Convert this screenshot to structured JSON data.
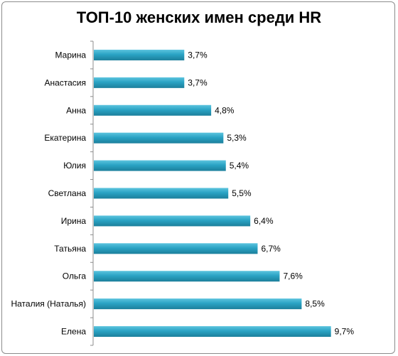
{
  "chart_data": {
    "type": "bar",
    "orientation": "horizontal",
    "title": "ТОП-10 женских имен среди HR",
    "categories": [
      "Марина",
      "Анастасия",
      "Анна",
      "Екатерина",
      "Юлия",
      "Светлана",
      "Ирина",
      "Татьяна",
      "Ольга",
      "Наталия (Наталья)",
      "Елена"
    ],
    "values": [
      3.7,
      3.7,
      4.8,
      5.3,
      5.4,
      5.5,
      6.4,
      6.7,
      7.6,
      8.5,
      9.7
    ],
    "data_labels": [
      "3,7%",
      "3,7%",
      "4,8%",
      "5,3%",
      "5,4%",
      "5,5%",
      "6,4%",
      "6,7%",
      "7,6%",
      "8,5%",
      "9,7%"
    ],
    "unit": "%",
    "bar_color": "#2aa3c4",
    "grid": false,
    "legend": "none"
  }
}
